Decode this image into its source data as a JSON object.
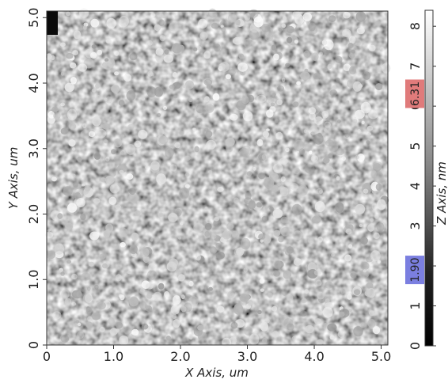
{
  "image": {
    "x_axis_label": "X Axis, um",
    "y_axis_label": "Y Axis, um",
    "z_axis_label": "Z Axis, nm",
    "x_ticks": [
      "0",
      "1.0",
      "2.0",
      "3.0",
      "4.0",
      "5.0"
    ],
    "y_ticks": [
      "0",
      "1.0",
      "2.0",
      "3.0",
      "4.0",
      "5.0"
    ],
    "x_range": [
      0,
      5.1
    ],
    "y_range": [
      0,
      5.1
    ]
  },
  "colorbar": {
    "ticks": [
      "0",
      "1",
      "2",
      "3",
      "4",
      "5",
      "6",
      "7",
      "8"
    ],
    "range": [
      0,
      8.4
    ],
    "marker_high": "6.31",
    "marker_low": "1.90",
    "marker_high_color": "#e07b7b",
    "marker_low_color": "#7b7fe0"
  }
}
